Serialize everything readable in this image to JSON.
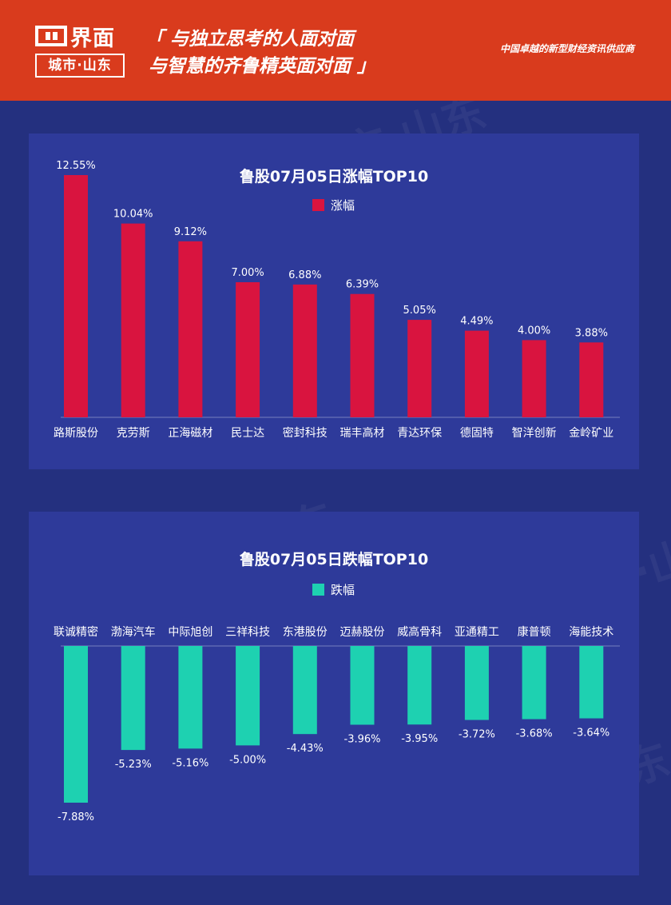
{
  "header": {
    "logo_name": "界面",
    "logo_sub": "城市·山东",
    "slogan_line1": "「 与独立思考的人面对面",
    "slogan_line2": "与智慧的齐鲁精英面对面 」",
    "tagline": "中国卓越的新型财经资讯供应商",
    "bg_color": "#d93b1d"
  },
  "watermark": {
    "text": "界面 城市·山东"
  },
  "chart_data": [
    {
      "type": "bar",
      "title": "鲁股07月05日涨幅TOP10",
      "legend": "涨幅",
      "color": "#d9143f",
      "categories": [
        "路斯股份",
        "克劳斯",
        "正海磁材",
        "民士达",
        "密封科技",
        "瑞丰高材",
        "青达环保",
        "德固特",
        "智洋创新",
        "金岭矿业"
      ],
      "values": [
        12.55,
        10.04,
        9.12,
        7.0,
        6.88,
        6.39,
        5.05,
        4.49,
        4.0,
        3.88
      ],
      "labels": [
        "12.55%",
        "10.04%",
        "9.12%",
        "7.00%",
        "6.88%",
        "6.39%",
        "5.05%",
        "4.49%",
        "4.00%",
        "3.88%"
      ]
    },
    {
      "type": "bar",
      "title": "鲁股07月05日跌幅TOP10",
      "legend": "跌幅",
      "color": "#1ed1b1",
      "categories": [
        "联诚精密",
        "渤海汽车",
        "中际旭创",
        "三祥科技",
        "东港股份",
        "迈赫股份",
        "威高骨科",
        "亚通精工",
        "康普顿",
        "海能技术"
      ],
      "values": [
        -7.88,
        -5.23,
        -5.16,
        -5.0,
        -4.43,
        -3.96,
        -3.95,
        -3.72,
        -3.68,
        -3.64
      ],
      "labels": [
        "-7.88%",
        "-5.23%",
        "-5.16%",
        "-5.00%",
        "-4.43%",
        "-3.96%",
        "-3.95%",
        "-3.72%",
        "-3.68%",
        "-3.64%"
      ]
    }
  ]
}
